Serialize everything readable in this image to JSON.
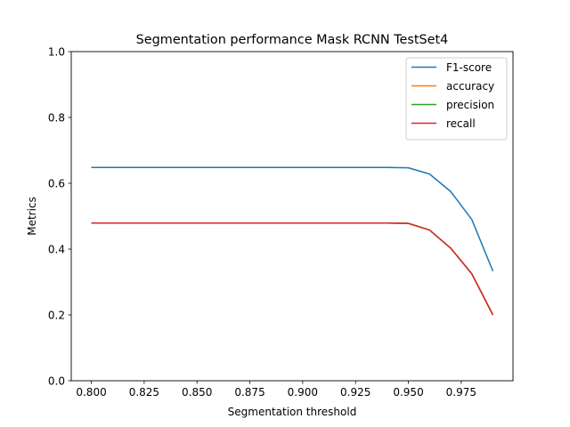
{
  "chart_data": {
    "type": "line",
    "title": "Segmentation performance Mask RCNN TestSet4",
    "xlabel": "Segmentation threshold",
    "ylabel": "Metrics",
    "xlim": [
      0.7905,
      0.9995
    ],
    "ylim": [
      0.0,
      1.0
    ],
    "xticks": [
      0.8,
      0.825,
      0.85,
      0.875,
      0.9,
      0.925,
      0.95,
      0.975
    ],
    "xtick_labels": [
      "0.800",
      "0.825",
      "0.850",
      "0.875",
      "0.900",
      "0.925",
      "0.950",
      "0.975"
    ],
    "yticks": [
      0.0,
      0.2,
      0.4,
      0.6,
      0.8,
      1.0
    ],
    "ytick_labels": [
      "0.0",
      "0.2",
      "0.4",
      "0.6",
      "0.8",
      "1.0"
    ],
    "grid": false,
    "legend_position": "upper right",
    "x": [
      0.8,
      0.81,
      0.82,
      0.83,
      0.84,
      0.85,
      0.86,
      0.87,
      0.88,
      0.89,
      0.9,
      0.91,
      0.92,
      0.93,
      0.94,
      0.95,
      0.96,
      0.97,
      0.98,
      0.99
    ],
    "series": [
      {
        "name": "F1-score",
        "color": "#1f77b4",
        "values": [
          0.648,
          0.648,
          0.648,
          0.648,
          0.648,
          0.648,
          0.648,
          0.648,
          0.648,
          0.648,
          0.648,
          0.648,
          0.648,
          0.648,
          0.648,
          0.647,
          0.628,
          0.575,
          0.49,
          0.333
        ]
      },
      {
        "name": "accuracy",
        "color": "#ff7f0e",
        "values": [
          0.479,
          0.479,
          0.479,
          0.479,
          0.479,
          0.479,
          0.479,
          0.479,
          0.479,
          0.479,
          0.479,
          0.479,
          0.479,
          0.479,
          0.479,
          0.478,
          0.458,
          0.403,
          0.325,
          0.2
        ]
      },
      {
        "name": "precision",
        "color": "#2ca02c",
        "values": [
          0.479,
          0.479,
          0.479,
          0.479,
          0.479,
          0.479,
          0.479,
          0.479,
          0.479,
          0.479,
          0.479,
          0.479,
          0.479,
          0.479,
          0.479,
          0.478,
          0.458,
          0.403,
          0.325,
          0.2
        ]
      },
      {
        "name": "recall",
        "color": "#d62728",
        "values": [
          0.479,
          0.479,
          0.479,
          0.479,
          0.479,
          0.479,
          0.479,
          0.479,
          0.479,
          0.479,
          0.479,
          0.479,
          0.479,
          0.479,
          0.479,
          0.478,
          0.458,
          0.403,
          0.325,
          0.2
        ]
      }
    ]
  }
}
